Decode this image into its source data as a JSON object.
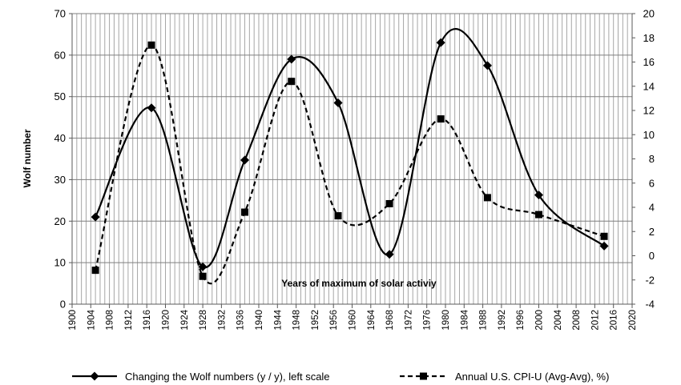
{
  "chart_data": {
    "type": "line",
    "ylabel": "Wolf number",
    "annotation": "Years of maximum of solar activiy",
    "xlim": [
      1900,
      2020
    ],
    "xticks": [
      1900,
      1904,
      1908,
      1912,
      1916,
      1920,
      1924,
      1928,
      1932,
      1936,
      1940,
      1944,
      1948,
      1952,
      1956,
      1960,
      1964,
      1968,
      1972,
      1976,
      1980,
      1984,
      1988,
      1992,
      1996,
      2000,
      2004,
      2008,
      2012,
      2016,
      2020
    ],
    "ylim_left": [
      0,
      70
    ],
    "yticks_left": [
      0,
      10,
      20,
      30,
      40,
      50,
      60,
      70
    ],
    "ylim_right": [
      -4,
      20
    ],
    "yticks_right": [
      -4,
      -2,
      0,
      2,
      4,
      6,
      8,
      10,
      12,
      14,
      16,
      18,
      20
    ],
    "grid": true,
    "legend_position": "bottom",
    "series": [
      {
        "name": "Changing the Wolf numbers (y / y), left scale",
        "axis": "left",
        "style": "solid",
        "marker": "diamond",
        "points": [
          {
            "x": 1905,
            "y": 21
          },
          {
            "x": 1917,
            "y": 47.3
          },
          {
            "x": 1928,
            "y": 9
          },
          {
            "x": 1937,
            "y": 34.7
          },
          {
            "x": 1947,
            "y": 59
          },
          {
            "x": 1957,
            "y": 48.5
          },
          {
            "x": 1968,
            "y": 12
          },
          {
            "x": 1979,
            "y": 63
          },
          {
            "x": 1989,
            "y": 57.5
          },
          {
            "x": 2000,
            "y": 26.3
          },
          {
            "x": 2014,
            "y": 14
          }
        ]
      },
      {
        "name": "Annual U.S.  CPI-U (Avg-Avg), %)",
        "axis": "right",
        "style": "dashed",
        "marker": "square",
        "points": [
          {
            "x": 1905,
            "y": -1.2
          },
          {
            "x": 1917,
            "y": 17.4
          },
          {
            "x": 1928,
            "y": -1.7
          },
          {
            "x": 1937,
            "y": 3.6
          },
          {
            "x": 1947,
            "y": 14.4
          },
          {
            "x": 1957,
            "y": 3.3
          },
          {
            "x": 1968,
            "y": 4.3
          },
          {
            "x": 1979,
            "y": 11.3
          },
          {
            "x": 1989,
            "y": 4.8
          },
          {
            "x": 2000,
            "y": 3.4
          },
          {
            "x": 2014,
            "y": 1.6
          }
        ]
      }
    ],
    "colors": {
      "line": "#000000",
      "grid": "#a6a6a6",
      "background": "#ffffff"
    }
  }
}
